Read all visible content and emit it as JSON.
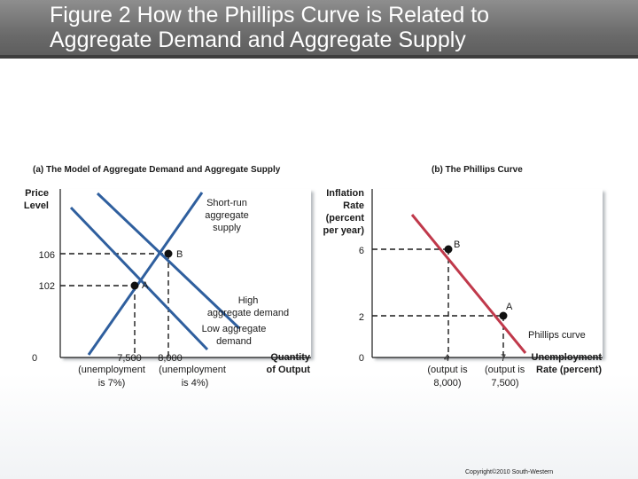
{
  "title": {
    "line1": "Figure 2 How the Phillips Curve is Related to",
    "line2": "Aggregate Demand and Aggregate Supply"
  },
  "panel_a": {
    "heading": "(a) The Model of Aggregate Demand and Aggregate Supply",
    "y_label_1": "Price",
    "y_label_2": "Level",
    "x_label_1": "Quantity",
    "x_label_2": "of Output",
    "origin": "0",
    "y_tick_106": "106",
    "y_tick_102": "102",
    "x_tick_7500": "7,500",
    "x_tick_7500_sub1": "(unemployment",
    "x_tick_7500_sub2": "is 7%)",
    "x_tick_8000": "8,000",
    "x_tick_8000_sub1": "(unemployment",
    "x_tick_8000_sub2": "is 4%)",
    "sras_1": "Short-run",
    "sras_2": "aggregate",
    "sras_3": "supply",
    "high_ad_1": "High",
    "high_ad_2": "aggregate demand",
    "low_ad_1": "Low aggregate",
    "low_ad_2": "demand",
    "point_a": "A",
    "point_b": "B"
  },
  "panel_b": {
    "heading": "(b) The Phillips Curve",
    "y_label_1": "Inflation",
    "y_label_2": "Rate",
    "y_label_3": "(percent",
    "y_label_4": "per year)",
    "x_label_1": "Unemployment",
    "x_label_2": "Rate (percent)",
    "origin": "0",
    "y_tick_6": "6",
    "y_tick_2": "2",
    "x_tick_4": "4",
    "x_tick_4_sub1": "(output is",
    "x_tick_4_sub2": "8,000)",
    "x_tick_7": "7",
    "x_tick_7_sub1": "(output is",
    "x_tick_7_sub2": "7,500)",
    "curve_label": "Phillips curve",
    "point_a": "A",
    "point_b": "B"
  },
  "copyright": "Copyright©2010 South-Western",
  "colors": {
    "curves_blue": "#2f5f9e",
    "phillips_red": "#c0394b",
    "title_bg": "#727272"
  }
}
